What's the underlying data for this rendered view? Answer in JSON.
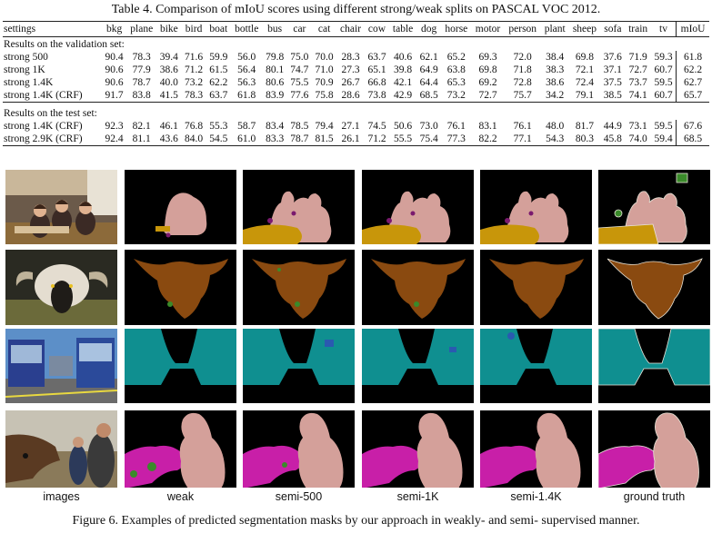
{
  "table_caption": "Table 4. Comparison of mIoU scores using different strong/weak splits on PASCAL VOC 2012.",
  "figure_caption": "Figure 6. Examples of predicted segmentation masks by our approach in weakly- and semi- supervised manner.",
  "table": {
    "columns": [
      "settings",
      "bkg",
      "plane",
      "bike",
      "bird",
      "boat",
      "bottle",
      "bus",
      "car",
      "cat",
      "chair",
      "cow",
      "table",
      "dog",
      "horse",
      "motor",
      "person",
      "plant",
      "sheep",
      "sofa",
      "train",
      "tv",
      "mIoU"
    ],
    "sections": [
      {
        "title": "Results on the validation set:",
        "rows": [
          [
            "strong 500",
            "90.4",
            "78.3",
            "39.4",
            "71.6",
            "59.9",
            "56.0",
            "79.8",
            "75.0",
            "70.0",
            "28.3",
            "63.7",
            "40.6",
            "62.1",
            "65.2",
            "69.3",
            "72.0",
            "38.4",
            "69.8",
            "37.6",
            "71.9",
            "59.3",
            "61.8"
          ],
          [
            "strong 1K",
            "90.6",
            "77.9",
            "38.6",
            "71.2",
            "61.5",
            "56.4",
            "80.1",
            "74.7",
            "71.0",
            "27.3",
            "65.1",
            "39.8",
            "64.9",
            "63.8",
            "69.8",
            "71.8",
            "38.3",
            "72.1",
            "37.1",
            "72.7",
            "60.7",
            "62.2"
          ],
          [
            "strong 1.4K",
            "90.6",
            "78.7",
            "40.0",
            "73.2",
            "62.2",
            "56.3",
            "80.6",
            "75.5",
            "70.9",
            "26.7",
            "66.8",
            "42.1",
            "64.4",
            "65.3",
            "69.2",
            "72.8",
            "38.6",
            "72.4",
            "37.5",
            "73.7",
            "59.5",
            "62.7"
          ],
          [
            "strong 1.4K (CRF)",
            "91.7",
            "83.8",
            "41.5",
            "78.3",
            "63.7",
            "61.8",
            "83.9",
            "77.6",
            "75.8",
            "28.6",
            "73.8",
            "42.9",
            "68.5",
            "73.2",
            "72.7",
            "75.7",
            "34.2",
            "79.1",
            "38.5",
            "74.1",
            "60.7",
            "65.7"
          ]
        ]
      },
      {
        "title": "Results on the test set:",
        "rows": [
          [
            "strong 1.4K (CRF)",
            "92.3",
            "82.1",
            "46.1",
            "76.8",
            "55.3",
            "58.7",
            "83.4",
            "78.5",
            "79.4",
            "27.1",
            "74.5",
            "50.6",
            "73.0",
            "76.1",
            "83.1",
            "76.1",
            "48.0",
            "81.7",
            "44.9",
            "73.1",
            "59.5",
            "67.6"
          ],
          [
            "strong 2.9K (CRF)",
            "92.4",
            "81.1",
            "43.6",
            "84.0",
            "54.5",
            "61.0",
            "83.3",
            "78.7",
            "81.5",
            "26.1",
            "71.2",
            "55.5",
            "75.4",
            "77.3",
            "82.2",
            "77.1",
            "54.3",
            "80.3",
            "45.8",
            "74.0",
            "59.4",
            "68.5"
          ]
        ]
      }
    ]
  },
  "figure": {
    "column_labels": [
      "images",
      "weak",
      "semi-500",
      "semi-1K",
      "semi-1.4K",
      "ground truth"
    ],
    "rows": [
      {
        "subject": "people at dining table"
      },
      {
        "subject": "sheep"
      },
      {
        "subject": "buses"
      },
      {
        "subject": "people with horse"
      }
    ]
  }
}
